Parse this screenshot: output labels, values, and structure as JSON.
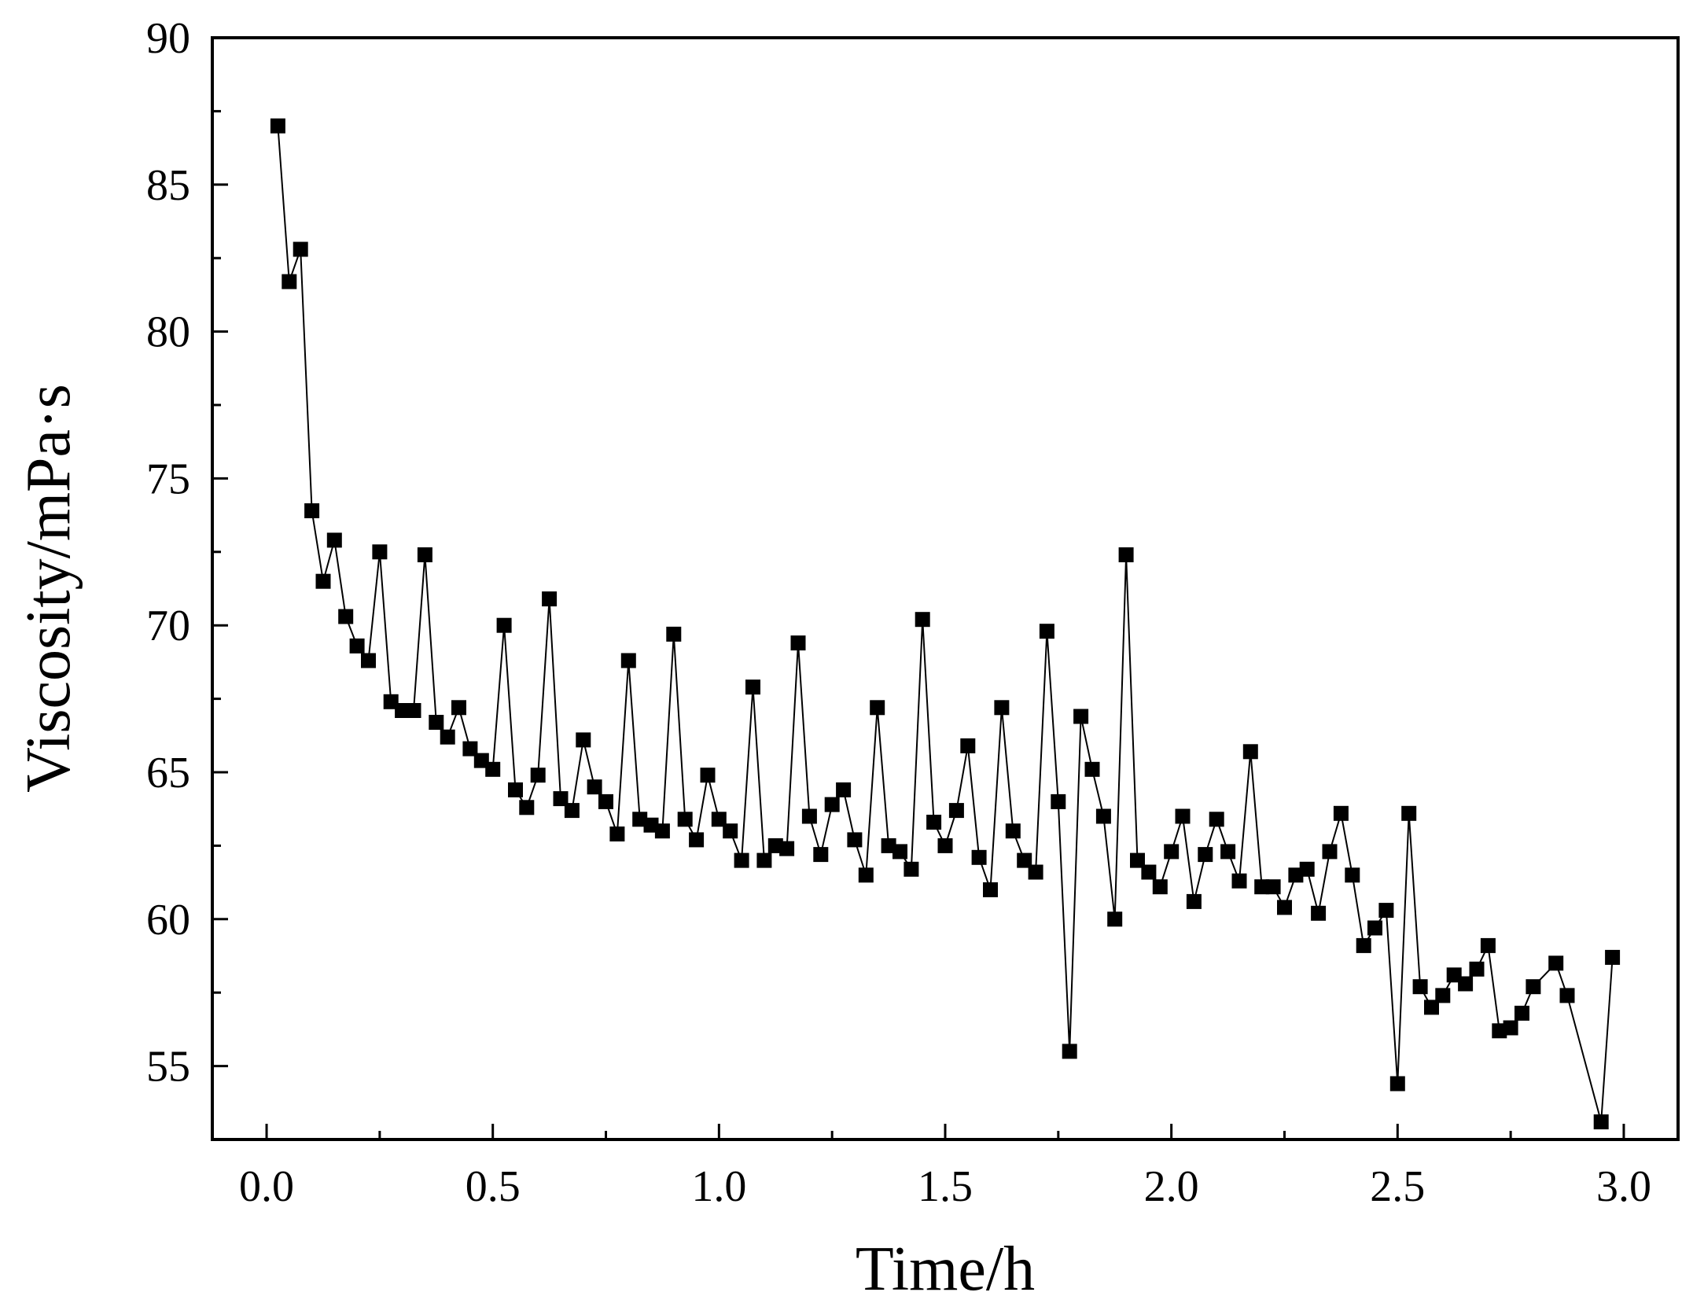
{
  "chart_data": {
    "type": "line",
    "xlabel": "Time/h",
    "ylabel": "Viscosity/mPa·s",
    "xlim": [
      -0.12,
      3.12
    ],
    "ylim": [
      52.5,
      90
    ],
    "xticks": [
      "0.0",
      "0.5",
      "1.0",
      "1.5",
      "2.0",
      "2.5",
      "3.0"
    ],
    "yticks": [
      "55",
      "60",
      "65",
      "70",
      "75",
      "80",
      "85",
      "90"
    ],
    "grid": false,
    "marker": "square",
    "color": "#000000",
    "series": [
      {
        "x": [
          0.025,
          0.05,
          0.075,
          0.1,
          0.125,
          0.15,
          0.175,
          0.2,
          0.225,
          0.25,
          0.275,
          0.3,
          0.325,
          0.35,
          0.375,
          0.4,
          0.425,
          0.45,
          0.475,
          0.5,
          0.525,
          0.55,
          0.575,
          0.6,
          0.625,
          0.65,
          0.675,
          0.7,
          0.725,
          0.75,
          0.775,
          0.8,
          0.825,
          0.85,
          0.875,
          0.9,
          0.925,
          0.95,
          0.975,
          1.0,
          1.025,
          1.05,
          1.075,
          1.1,
          1.125,
          1.15,
          1.175,
          1.2,
          1.225,
          1.25,
          1.275,
          1.3,
          1.325,
          1.35,
          1.375,
          1.4,
          1.425,
          1.45,
          1.475,
          1.5,
          1.525,
          1.55,
          1.575,
          1.6,
          1.625,
          1.65,
          1.675,
          1.7,
          1.725,
          1.75,
          1.775,
          1.8,
          1.825,
          1.85,
          1.875,
          1.9,
          1.925,
          1.95,
          1.975,
          2.0,
          2.025,
          2.05,
          2.075,
          2.1,
          2.125,
          2.15,
          2.175,
          2.2,
          2.225,
          2.25,
          2.275,
          2.3,
          2.325,
          2.35,
          2.375,
          2.4,
          2.425,
          2.45,
          2.475,
          2.5,
          2.525,
          2.55,
          2.575,
          2.6,
          2.625,
          2.65,
          2.675,
          2.7,
          2.725,
          2.75,
          2.775,
          2.8,
          2.85,
          2.875,
          2.95,
          2.975
        ],
        "y": [
          87.0,
          81.7,
          82.8,
          73.9,
          71.5,
          72.9,
          70.3,
          69.3,
          68.8,
          72.5,
          67.4,
          67.1,
          67.1,
          72.4,
          66.7,
          66.2,
          67.2,
          65.8,
          65.4,
          65.1,
          70.0,
          64.4,
          63.8,
          64.9,
          70.9,
          64.1,
          63.7,
          66.1,
          64.5,
          64.0,
          62.9,
          68.8,
          63.4,
          63.2,
          63.0,
          69.7,
          63.4,
          62.7,
          64.9,
          63.4,
          63.0,
          62.0,
          67.9,
          62.0,
          62.5,
          62.4,
          69.4,
          63.5,
          62.2,
          63.9,
          64.4,
          62.7,
          61.5,
          67.2,
          62.5,
          62.3,
          61.7,
          70.2,
          63.3,
          62.5,
          63.7,
          65.9,
          62.1,
          61.0,
          67.2,
          63.0,
          62.0,
          61.6,
          69.8,
          64.0,
          55.5,
          66.9,
          65.1,
          63.5,
          60.0,
          72.4,
          62.0,
          61.6,
          61.1,
          62.3,
          63.5,
          60.6,
          62.2,
          63.4,
          62.3,
          61.3,
          65.7,
          61.1,
          61.1,
          60.4,
          61.5,
          61.7,
          60.2,
          62.3,
          63.6,
          61.5,
          59.1,
          59.7,
          60.3,
          54.4,
          63.6,
          57.7,
          57.0,
          57.4,
          58.1,
          57.8,
          58.3,
          59.1,
          56.2,
          56.3,
          56.8,
          57.7,
          58.5,
          57.4,
          53.1,
          58.7
        ]
      }
    ]
  }
}
